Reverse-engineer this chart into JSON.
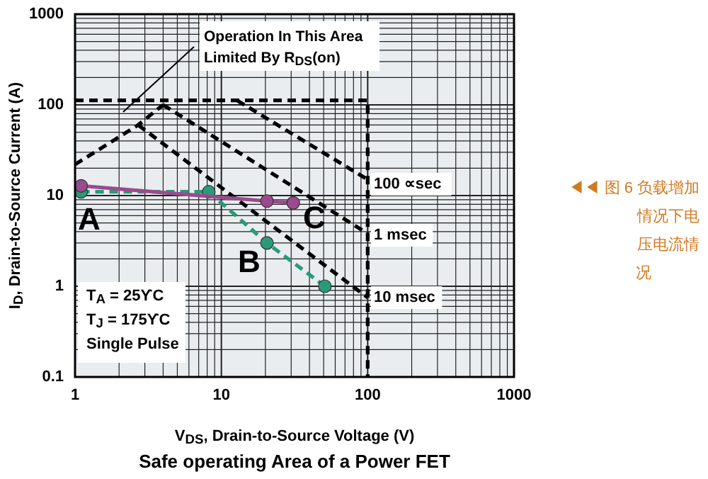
{
  "chart_data": {
    "type": "line",
    "title": "Safe operating Area of a Power FET",
    "xlabel": "V$_{DS}$, Drain-to-Source Voltage (V)",
    "ylabel": "I$_{D}$, Drain-to-Source Current (A)",
    "log": "xy",
    "grid": true,
    "xlim": [
      1,
      1000
    ],
    "xticks": [
      1,
      10,
      100,
      1000
    ],
    "ylim": [
      0.1,
      1000
    ],
    "yticks": [
      0.1,
      1,
      10,
      100,
      1000
    ],
    "series": [
      {
        "color": "#000000",
        "line_style": "dashed",
        "marker": "none",
        "x": [
          1,
          2.7,
          4
        ],
        "values": [
          22,
          60,
          100
        ]
      },
      {
        "color": "#000000",
        "line_style": "dashed",
        "marker": "none",
        "x": [
          1,
          12.8,
          100,
          100
        ],
        "values": [
          112,
          112,
          112,
          0.1
        ]
      },
      {
        "color": "#000000",
        "line_style": "dashed",
        "marker": "none",
        "x": [
          12.8,
          100
        ],
        "values": [
          112,
          15
        ]
      },
      {
        "color": "#000000",
        "line_style": "dashed",
        "marker": "none",
        "x": [
          4,
          100
        ],
        "values": [
          100,
          3.8
        ]
      },
      {
        "color": "#000000",
        "line_style": "dashed",
        "marker": "none",
        "x": [
          2.7,
          100
        ],
        "values": [
          60,
          0.75
        ]
      },
      {
        "color": "#2a9a7a",
        "line_style": "dashed",
        "marker": "circle",
        "x": [
          1.1,
          8.2,
          20.5,
          51
        ],
        "values": [
          11,
          11,
          3,
          1
        ]
      },
      {
        "color": "#9a4a8e",
        "line_style": "solid",
        "marker": "circle",
        "x": [
          1.1,
          20.5,
          31
        ],
        "values": [
          12.8,
          8.7,
          8.3
        ]
      }
    ],
    "annotations": [
      "Operation In This Area Limited By R$_{DS}$(on)",
      "T$_{A}$ = 25ϒC",
      "T$_{J}$ = 175ϒC",
      "Single Pulse",
      "◀◀ 图 6 负载增加情况下电压电流情况",
      "A",
      "B",
      "C",
      "100 ∝sec",
      "1 msec",
      "10 msec"
    ]
  }
}
